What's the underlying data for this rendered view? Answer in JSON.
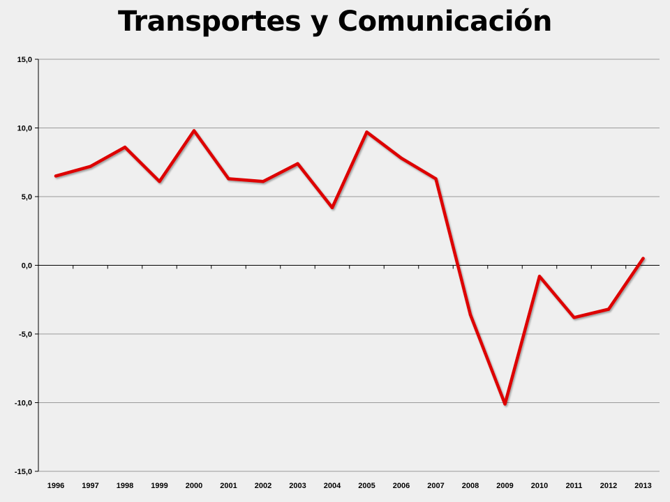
{
  "chart_data": {
    "type": "line",
    "title": "Transportes y Comunicación",
    "xlabel": "",
    "ylabel": "",
    "categories": [
      "1996",
      "1997",
      "1998",
      "1999",
      "2000",
      "2001",
      "2002",
      "2003",
      "2004",
      "2005",
      "2006",
      "2007",
      "2008",
      "2009",
      "2010",
      "2011",
      "2012",
      "2013"
    ],
    "series": [
      {
        "values": [
          6.5,
          7.2,
          8.6,
          6.1,
          9.8,
          6.3,
          6.1,
          7.4,
          4.2,
          9.7,
          7.8,
          6.3,
          -3.6,
          -10.1,
          -0.8,
          -3.8,
          -3.2,
          0.5
        ],
        "color": "#dd0000"
      }
    ],
    "ylim": [
      -15,
      15
    ],
    "yticks": [
      15,
      10,
      5,
      0,
      -5,
      -10,
      -15
    ],
    "ytick_labels": [
      "15,0",
      "10,0",
      "5,0",
      "0,0",
      "-5,0",
      "-10,0",
      "-15,0"
    ],
    "grid": true,
    "legend": "none"
  }
}
